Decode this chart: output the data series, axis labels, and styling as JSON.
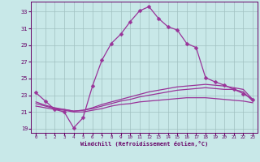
{
  "title": "",
  "xlabel": "Windchill (Refroidissement éolien,°C)",
  "background_color": "#c8e8e8",
  "grid_color": "#a0c0c0",
  "line_color": "#993399",
  "xlim": [
    -0.5,
    23.5
  ],
  "ylim": [
    18.5,
    34.2
  ],
  "xticks": [
    0,
    1,
    2,
    3,
    4,
    5,
    6,
    7,
    8,
    9,
    10,
    11,
    12,
    13,
    14,
    15,
    16,
    17,
    18,
    19,
    20,
    21,
    22,
    23
  ],
  "yticks": [
    19,
    21,
    23,
    25,
    27,
    29,
    31,
    33
  ],
  "curve1_x": [
    0,
    1,
    2,
    3,
    4,
    5,
    6,
    7,
    8,
    9,
    10,
    11,
    12,
    13,
    14,
    15,
    16,
    17,
    18,
    19,
    20,
    21,
    22,
    23
  ],
  "curve1_y": [
    23.3,
    22.3,
    21.3,
    21.0,
    19.1,
    20.3,
    24.1,
    27.2,
    29.2,
    30.3,
    31.8,
    33.1,
    33.6,
    32.2,
    31.2,
    30.8,
    29.2,
    28.7,
    25.1,
    24.6,
    24.2,
    23.7,
    23.2,
    22.5
  ],
  "curve2_x": [
    0,
    1,
    2,
    3,
    4,
    5,
    6,
    7,
    8,
    9,
    10,
    11,
    12,
    13,
    14,
    15,
    16,
    17,
    18,
    19,
    20,
    21,
    22,
    23
  ],
  "curve2_y": [
    22.2,
    21.8,
    21.5,
    21.3,
    21.1,
    21.2,
    21.5,
    21.9,
    22.2,
    22.5,
    22.8,
    23.1,
    23.4,
    23.6,
    23.8,
    24.0,
    24.1,
    24.2,
    24.3,
    24.2,
    24.1,
    23.9,
    23.7,
    22.5
  ],
  "curve3_x": [
    0,
    1,
    2,
    3,
    4,
    5,
    6,
    7,
    8,
    9,
    10,
    11,
    12,
    13,
    14,
    15,
    16,
    17,
    18,
    19,
    20,
    21,
    22,
    23
  ],
  "curve3_y": [
    22.0,
    21.7,
    21.4,
    21.3,
    21.1,
    21.2,
    21.4,
    21.7,
    22.0,
    22.3,
    22.5,
    22.8,
    23.0,
    23.2,
    23.4,
    23.6,
    23.7,
    23.8,
    23.9,
    23.8,
    23.7,
    23.7,
    23.4,
    22.3
  ],
  "curve4_x": [
    0,
    1,
    2,
    3,
    4,
    5,
    6,
    7,
    8,
    9,
    10,
    11,
    12,
    13,
    14,
    15,
    16,
    17,
    18,
    19,
    20,
    21,
    22,
    23
  ],
  "curve4_y": [
    21.7,
    21.5,
    21.3,
    21.2,
    21.0,
    21.0,
    21.2,
    21.4,
    21.7,
    21.9,
    22.0,
    22.2,
    22.3,
    22.4,
    22.5,
    22.6,
    22.7,
    22.7,
    22.7,
    22.6,
    22.5,
    22.4,
    22.3,
    22.1
  ],
  "markersize": 2.5,
  "linewidth": 0.9
}
